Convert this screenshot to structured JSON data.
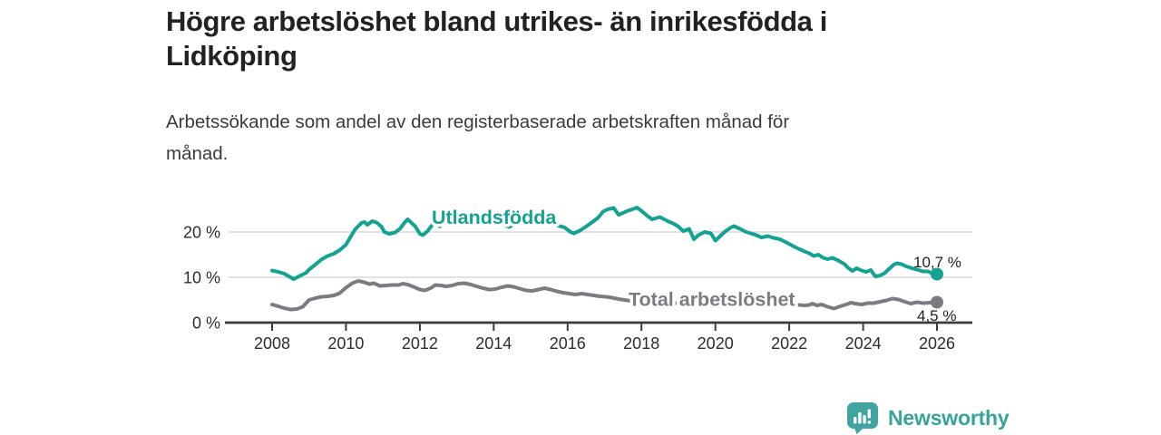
{
  "header": {
    "title_line1": "Högre arbetslöshet bland utrikes- än inrikesfödda i",
    "title_line2": "Lidköping",
    "subtitle_line1": "Arbetssökande som andel av den registerbaserade arbetskraften månad för",
    "subtitle_line2": "månad."
  },
  "chart_data": {
    "type": "line",
    "title": "Högre arbetslöshet bland utrikes- än inrikesfödda i Lidköping",
    "subtitle": "Arbetssökande som andel av den registerbaserade arbetskraften månad för månad.",
    "x_unit": "year (monthly data)",
    "y_unit": "%",
    "xlim": [
      2007,
      2027
    ],
    "ylim": [
      0,
      27
    ],
    "grid": "horizontal",
    "legend_position": "inline-labels",
    "x_ticks": [
      2008,
      2010,
      2012,
      2014,
      2016,
      2018,
      2020,
      2022,
      2024,
      2026
    ],
    "y_ticks": [
      {
        "value": 0,
        "label": "0 %"
      },
      {
        "value": 10,
        "label": "10 %"
      },
      {
        "value": 20,
        "label": "20 %"
      }
    ],
    "series": [
      {
        "name": "Utlandsfödda",
        "color": "#14a392",
        "marker": "end-dot",
        "end_value": 10.7,
        "end_label": "10,7 %",
        "points": [
          [
            2008.0,
            11.5
          ],
          [
            2008.17,
            11.2
          ],
          [
            2008.33,
            10.8
          ],
          [
            2008.5,
            10.0
          ],
          [
            2008.58,
            9.6
          ],
          [
            2008.75,
            10.3
          ],
          [
            2008.92,
            11.0
          ],
          [
            2009.0,
            11.7
          ],
          [
            2009.17,
            12.8
          ],
          [
            2009.33,
            13.9
          ],
          [
            2009.5,
            14.7
          ],
          [
            2009.67,
            15.2
          ],
          [
            2009.83,
            16.0
          ],
          [
            2010.0,
            17.2
          ],
          [
            2010.13,
            19.0
          ],
          [
            2010.25,
            20.6
          ],
          [
            2010.42,
            22.0
          ],
          [
            2010.5,
            22.2
          ],
          [
            2010.58,
            21.6
          ],
          [
            2010.71,
            22.4
          ],
          [
            2010.83,
            22.1
          ],
          [
            2010.96,
            21.2
          ],
          [
            2011.04,
            20.0
          ],
          [
            2011.17,
            19.6
          ],
          [
            2011.33,
            19.9
          ],
          [
            2011.46,
            20.7
          ],
          [
            2011.58,
            22.0
          ],
          [
            2011.67,
            22.8
          ],
          [
            2011.79,
            21.9
          ],
          [
            2011.88,
            21.2
          ],
          [
            2012.0,
            19.6
          ],
          [
            2012.08,
            19.3
          ],
          [
            2012.21,
            20.2
          ],
          [
            2012.33,
            21.5
          ],
          [
            2012.42,
            22.4
          ],
          [
            2012.54,
            21.2
          ],
          [
            2012.67,
            23.0
          ],
          [
            2012.79,
            23.8
          ],
          [
            2012.92,
            24.0
          ],
          [
            2013.08,
            23.7
          ],
          [
            2013.25,
            23.2
          ],
          [
            2013.42,
            23.5
          ],
          [
            2013.58,
            23.3
          ],
          [
            2013.75,
            23.0
          ],
          [
            2013.92,
            22.7
          ],
          [
            2014.08,
            22.3
          ],
          [
            2014.25,
            21.7
          ],
          [
            2014.42,
            21.1
          ],
          [
            2014.58,
            21.9
          ],
          [
            2014.75,
            22.3
          ],
          [
            2014.92,
            22.6
          ],
          [
            2015.08,
            22.8
          ],
          [
            2015.25,
            22.4
          ],
          [
            2015.42,
            22.1
          ],
          [
            2015.58,
            21.8
          ],
          [
            2015.75,
            21.4
          ],
          [
            2015.92,
            21.0
          ],
          [
            2016.08,
            20.0
          ],
          [
            2016.17,
            19.7
          ],
          [
            2016.33,
            20.3
          ],
          [
            2016.5,
            21.2
          ],
          [
            2016.67,
            22.2
          ],
          [
            2016.83,
            23.2
          ],
          [
            2016.96,
            24.5
          ],
          [
            2017.08,
            25.0
          ],
          [
            2017.25,
            25.3
          ],
          [
            2017.38,
            23.8
          ],
          [
            2017.5,
            24.2
          ],
          [
            2017.63,
            24.7
          ],
          [
            2017.75,
            25.0
          ],
          [
            2017.88,
            25.4
          ],
          [
            2018.04,
            24.4
          ],
          [
            2018.17,
            23.5
          ],
          [
            2018.29,
            22.8
          ],
          [
            2018.5,
            23.3
          ],
          [
            2018.71,
            22.4
          ],
          [
            2018.88,
            21.8
          ],
          [
            2019.0,
            21.2
          ],
          [
            2019.13,
            20.2
          ],
          [
            2019.29,
            20.7
          ],
          [
            2019.42,
            18.4
          ],
          [
            2019.54,
            19.3
          ],
          [
            2019.71,
            20.0
          ],
          [
            2019.88,
            19.7
          ],
          [
            2020.0,
            18.1
          ],
          [
            2020.13,
            19.1
          ],
          [
            2020.25,
            20.0
          ],
          [
            2020.42,
            21.0
          ],
          [
            2020.5,
            21.3
          ],
          [
            2020.67,
            20.7
          ],
          [
            2020.83,
            20.0
          ],
          [
            2020.96,
            19.7
          ],
          [
            2021.08,
            19.4
          ],
          [
            2021.25,
            18.8
          ],
          [
            2021.42,
            19.1
          ],
          [
            2021.58,
            18.7
          ],
          [
            2021.75,
            18.4
          ],
          [
            2021.92,
            17.7
          ],
          [
            2022.08,
            17.0
          ],
          [
            2022.25,
            16.3
          ],
          [
            2022.42,
            15.7
          ],
          [
            2022.54,
            15.3
          ],
          [
            2022.67,
            14.7
          ],
          [
            2022.79,
            15.0
          ],
          [
            2022.92,
            14.3
          ],
          [
            2023.04,
            14.0
          ],
          [
            2023.17,
            14.3
          ],
          [
            2023.33,
            13.7
          ],
          [
            2023.5,
            12.9
          ],
          [
            2023.58,
            12.2
          ],
          [
            2023.71,
            11.4
          ],
          [
            2023.83,
            12.0
          ],
          [
            2023.96,
            11.5
          ],
          [
            2024.08,
            11.2
          ],
          [
            2024.21,
            11.6
          ],
          [
            2024.33,
            10.2
          ],
          [
            2024.46,
            10.4
          ],
          [
            2024.58,
            10.9
          ],
          [
            2024.71,
            11.9
          ],
          [
            2024.83,
            12.8
          ],
          [
            2024.92,
            13.1
          ],
          [
            2025.04,
            12.9
          ],
          [
            2025.17,
            12.4
          ],
          [
            2025.33,
            12.0
          ],
          [
            2025.5,
            11.6
          ],
          [
            2025.63,
            11.3
          ],
          [
            2025.75,
            11.3
          ],
          [
            2025.88,
            10.9
          ],
          [
            2026.0,
            10.7
          ]
        ]
      },
      {
        "name": "Total arbetslöshet",
        "color": "#7b7b83",
        "marker": "end-dot",
        "end_value": 4.5,
        "end_label": "4,5 %",
        "points": [
          [
            2008.0,
            4.0
          ],
          [
            2008.17,
            3.6
          ],
          [
            2008.33,
            3.2
          ],
          [
            2008.5,
            2.9
          ],
          [
            2008.67,
            3.0
          ],
          [
            2008.83,
            3.5
          ],
          [
            2009.0,
            5.0
          ],
          [
            2009.17,
            5.4
          ],
          [
            2009.33,
            5.7
          ],
          [
            2009.5,
            5.8
          ],
          [
            2009.67,
            6.0
          ],
          [
            2009.83,
            6.5
          ],
          [
            2010.0,
            7.7
          ],
          [
            2010.17,
            8.7
          ],
          [
            2010.33,
            9.2
          ],
          [
            2010.5,
            8.9
          ],
          [
            2010.63,
            8.5
          ],
          [
            2010.75,
            8.7
          ],
          [
            2010.92,
            8.1
          ],
          [
            2011.08,
            8.2
          ],
          [
            2011.25,
            8.3
          ],
          [
            2011.42,
            8.3
          ],
          [
            2011.54,
            8.6
          ],
          [
            2011.67,
            8.4
          ],
          [
            2011.83,
            7.9
          ],
          [
            2012.0,
            7.3
          ],
          [
            2012.13,
            7.1
          ],
          [
            2012.29,
            7.6
          ],
          [
            2012.42,
            8.3
          ],
          [
            2012.58,
            8.2
          ],
          [
            2012.71,
            8.0
          ],
          [
            2012.88,
            8.2
          ],
          [
            2013.04,
            8.6
          ],
          [
            2013.21,
            8.7
          ],
          [
            2013.38,
            8.4
          ],
          [
            2013.54,
            8.0
          ],
          [
            2013.71,
            7.6
          ],
          [
            2013.88,
            7.3
          ],
          [
            2014.04,
            7.4
          ],
          [
            2014.21,
            7.8
          ],
          [
            2014.38,
            8.1
          ],
          [
            2014.54,
            7.9
          ],
          [
            2014.71,
            7.5
          ],
          [
            2014.88,
            7.1
          ],
          [
            2015.04,
            7.0
          ],
          [
            2015.21,
            7.3
          ],
          [
            2015.38,
            7.6
          ],
          [
            2015.54,
            7.3
          ],
          [
            2015.71,
            6.9
          ],
          [
            2015.88,
            6.6
          ],
          [
            2016.04,
            6.4
          ],
          [
            2016.21,
            6.2
          ],
          [
            2016.38,
            6.4
          ],
          [
            2016.54,
            6.2
          ],
          [
            2016.71,
            6.0
          ],
          [
            2016.88,
            5.8
          ],
          [
            2017.04,
            5.7
          ],
          [
            2017.21,
            5.5
          ],
          [
            2017.38,
            5.2
          ],
          [
            2017.54,
            5.0
          ],
          [
            2017.71,
            4.8
          ],
          [
            2018.0,
            4.6
          ],
          [
            2018.33,
            4.4
          ],
          [
            2018.67,
            4.3
          ],
          [
            2019.0,
            4.3
          ],
          [
            2019.33,
            4.4
          ],
          [
            2019.67,
            4.5
          ],
          [
            2020.0,
            4.7
          ],
          [
            2020.33,
            5.1
          ],
          [
            2020.5,
            5.2
          ],
          [
            2020.75,
            5.1
          ],
          [
            2021.0,
            4.9
          ],
          [
            2021.33,
            4.6
          ],
          [
            2021.67,
            4.3
          ],
          [
            2022.0,
            4.0
          ],
          [
            2022.25,
            3.9
          ],
          [
            2022.42,
            3.8
          ],
          [
            2022.54,
            3.9
          ],
          [
            2022.63,
            4.2
          ],
          [
            2022.75,
            3.8
          ],
          [
            2022.88,
            4.0
          ],
          [
            2023.04,
            3.5
          ],
          [
            2023.21,
            3.1
          ],
          [
            2023.38,
            3.6
          ],
          [
            2023.54,
            4.0
          ],
          [
            2023.67,
            4.4
          ],
          [
            2023.79,
            4.2
          ],
          [
            2023.96,
            4.0
          ],
          [
            2024.13,
            4.3
          ],
          [
            2024.29,
            4.3
          ],
          [
            2024.46,
            4.6
          ],
          [
            2024.63,
            4.9
          ],
          [
            2024.79,
            5.3
          ],
          [
            2024.96,
            5.1
          ],
          [
            2025.13,
            4.6
          ],
          [
            2025.29,
            4.2
          ],
          [
            2025.46,
            4.5
          ],
          [
            2025.63,
            4.3
          ],
          [
            2025.79,
            4.4
          ],
          [
            2026.0,
            4.5
          ]
        ]
      }
    ]
  },
  "footer": {
    "brand": "Newsworthy",
    "logo_icon": "bar-chart-speech-bubble-icon",
    "brand_color": "#38a29c"
  }
}
